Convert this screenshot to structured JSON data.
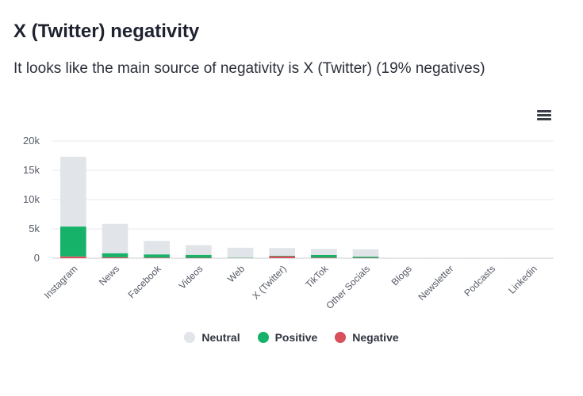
{
  "title": "X (Twitter) negativity",
  "subtitle": "It looks like the main source of negativity is X (Twitter) (19% negatives)",
  "menu_icon": "hamburger-menu-icon",
  "chart_data": {
    "type": "bar",
    "stacked": true,
    "categories": [
      "Instagram",
      "News",
      "Facebook",
      "Videos",
      "Web",
      "X (Twitter)",
      "TikTok",
      "Other Socials",
      "Blogs",
      "Newsletter",
      "Podcasts",
      "Linkedin"
    ],
    "series": [
      {
        "name": "Neutral",
        "color": "#e1e4e8",
        "values": [
          11900,
          5000,
          2300,
          1650,
          1700,
          1300,
          1050,
          1250,
          60,
          30,
          30,
          20
        ]
      },
      {
        "name": "Positive",
        "color": "#17b26a",
        "values": [
          5100,
          700,
          550,
          500,
          50,
          100,
          450,
          200,
          10,
          5,
          5,
          5
        ]
      },
      {
        "name": "Negative",
        "color": "#d94f5c",
        "values": [
          300,
          150,
          100,
          70,
          30,
          330,
          100,
          60,
          5,
          3,
          3,
          2
        ]
      }
    ],
    "yticks": [
      "0",
      "5k",
      "10k",
      "15k",
      "20k"
    ],
    "ylim": [
      0,
      20000
    ],
    "grid": true,
    "legend_position": "bottom-center"
  }
}
